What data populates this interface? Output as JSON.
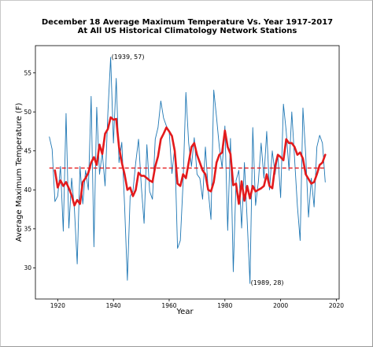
{
  "chart_data": {
    "type": "line",
    "title": "December 18 Average Maximum Temperature Vs. Year 1917-2017",
    "subtitle": "At All US Historical Climatology Network Stations",
    "xlabel": "Year",
    "ylabel": "Average Maximum Temperature (F)",
    "xlim": [
      1912,
      2021
    ],
    "ylim": [
      26.0,
      58.5
    ],
    "x_ticks": [
      1920,
      1940,
      1960,
      1980,
      2000,
      2020
    ],
    "y_ticks": [
      30,
      35,
      40,
      45,
      50,
      55
    ],
    "x_tick_labels": [
      "1920",
      "1940",
      "1960",
      "1980",
      "2000",
      "2020"
    ],
    "y_tick_labels": [
      "30",
      "35",
      "40",
      "45",
      "50",
      "55"
    ],
    "grid": false,
    "series": [
      {
        "role": "annual",
        "color": "#1f77b4",
        "x": [
          1917,
          1918,
          1919,
          1920,
          1921,
          1922,
          1923,
          1924,
          1925,
          1926,
          1927,
          1928,
          1929,
          1930,
          1931,
          1932,
          1933,
          1934,
          1935,
          1936,
          1937,
          1938,
          1939,
          1940,
          1941,
          1942,
          1943,
          1944,
          1945,
          1946,
          1947,
          1948,
          1949,
          1950,
          1951,
          1952,
          1953,
          1954,
          1955,
          1956,
          1957,
          1958,
          1959,
          1960,
          1961,
          1962,
          1963,
          1964,
          1965,
          1966,
          1967,
          1968,
          1969,
          1970,
          1971,
          1972,
          1973,
          1974,
          1975,
          1976,
          1977,
          1978,
          1979,
          1980,
          1981,
          1982,
          1983,
          1984,
          1985,
          1986,
          1987,
          1988,
          1989,
          1990,
          1991,
          1992,
          1993,
          1994,
          1995,
          1996,
          1997,
          1998,
          1999,
          2000,
          2001,
          2002,
          2003,
          2004,
          2005,
          2006,
          2007,
          2008,
          2009,
          2010,
          2011,
          2012,
          2013,
          2014,
          2015,
          2016
        ],
        "y": [
          46.8,
          45.2,
          38.5,
          39.2,
          43.0,
          34.7,
          49.8,
          35.1,
          41.5,
          37.5,
          30.5,
          43.0,
          38.2,
          42.5,
          40.0,
          52.0,
          32.7,
          50.6,
          42.0,
          44.8,
          40.5,
          49.8,
          57.0,
          46.0,
          54.3,
          43.5,
          46.1,
          38.0,
          28.4,
          39.2,
          39.8,
          43.5,
          46.5,
          40.5,
          35.7,
          45.8,
          39.8,
          38.8,
          46.5,
          48.0,
          51.4,
          49.2,
          48.2,
          47.5,
          42.1,
          45.5,
          32.5,
          33.5,
          41.0,
          52.5,
          46.0,
          43.0,
          46.7,
          42.0,
          41.5,
          38.8,
          45.5,
          40.0,
          36.2,
          52.8,
          49.3,
          45.5,
          42.8,
          48.2,
          34.8,
          46.6,
          29.5,
          41.2,
          42.5,
          35.1,
          43.5,
          36.0,
          28.0,
          48.0,
          38.0,
          41.0,
          46.0,
          41.5,
          47.5,
          40.0,
          45.0,
          42.0,
          44.5,
          39.0,
          51.0,
          47.5,
          42.5,
          50.0,
          44.0,
          38.0,
          33.5,
          50.5,
          44.5,
          36.5,
          41.5,
          37.8,
          45.5,
          47.0,
          46.0,
          41.0
        ]
      },
      {
        "role": "smoothed",
        "color": "#e31a1c",
        "x": [
          1919,
          1920,
          1921,
          1922,
          1923,
          1924,
          1925,
          1926,
          1927,
          1928,
          1929,
          1930,
          1931,
          1932,
          1933,
          1934,
          1935,
          1936,
          1937,
          1938,
          1939,
          1940,
          1941,
          1942,
          1943,
          1944,
          1945,
          1946,
          1947,
          1948,
          1949,
          1950,
          1951,
          1952,
          1953,
          1954,
          1955,
          1956,
          1957,
          1958,
          1959,
          1960,
          1961,
          1962,
          1963,
          1964,
          1965,
          1966,
          1967,
          1968,
          1969,
          1970,
          1971,
          1972,
          1973,
          1974,
          1975,
          1976,
          1977,
          1978,
          1979,
          1980,
          1981,
          1982,
          1983,
          1984,
          1985,
          1986,
          1987,
          1988,
          1989,
          1990,
          1991,
          1992,
          1993,
          1994,
          1995,
          1996,
          1997,
          1998,
          1999,
          2000,
          2001,
          2002,
          2003,
          2004,
          2005,
          2006,
          2007,
          2008,
          2009,
          2010,
          2011,
          2012,
          2013,
          2014,
          2015,
          2016
        ],
        "y": [
          42.5,
          40.3,
          41.2,
          40.5,
          41.0,
          40.2,
          39.3,
          38.0,
          38.7,
          38.2,
          41.0,
          41.5,
          42.2,
          43.5,
          44.2,
          43.2,
          45.8,
          44.6,
          47.2,
          47.8,
          49.3,
          49.0,
          49.1,
          45.5,
          43.5,
          42.0,
          40.0,
          40.3,
          39.2,
          40.0,
          42.2,
          41.8,
          41.8,
          41.5,
          41.2,
          41.0,
          43.0,
          44.3,
          46.5,
          47.2,
          48.0,
          47.5,
          46.9,
          45.0,
          40.8,
          40.5,
          42.0,
          41.5,
          43.5,
          45.5,
          46.0,
          44.5,
          43.5,
          42.5,
          42.0,
          40.0,
          39.8,
          41.0,
          43.5,
          44.5,
          44.8,
          47.6,
          45.5,
          44.6,
          40.6,
          40.8,
          38.2,
          41.1,
          38.6,
          40.5,
          38.9,
          40.5,
          39.8,
          40.0,
          40.2,
          40.5,
          42.0,
          40.5,
          40.2,
          43.0,
          44.5,
          44.2,
          43.8,
          46.5,
          46.0,
          46.0,
          45.5,
          44.5,
          44.8,
          44.0,
          42.0,
          41.4,
          40.8,
          41.0,
          42.0,
          43.2,
          43.5,
          44.5
        ]
      }
    ],
    "mean_line": {
      "y": 42.8,
      "color": "#e31a1c",
      "style": "dashed"
    },
    "annotations": [
      {
        "text": "(1939, 57)",
        "x": 1939,
        "y": 57
      },
      {
        "text": "(1989, 28)",
        "x": 1989,
        "y": 28
      }
    ]
  }
}
